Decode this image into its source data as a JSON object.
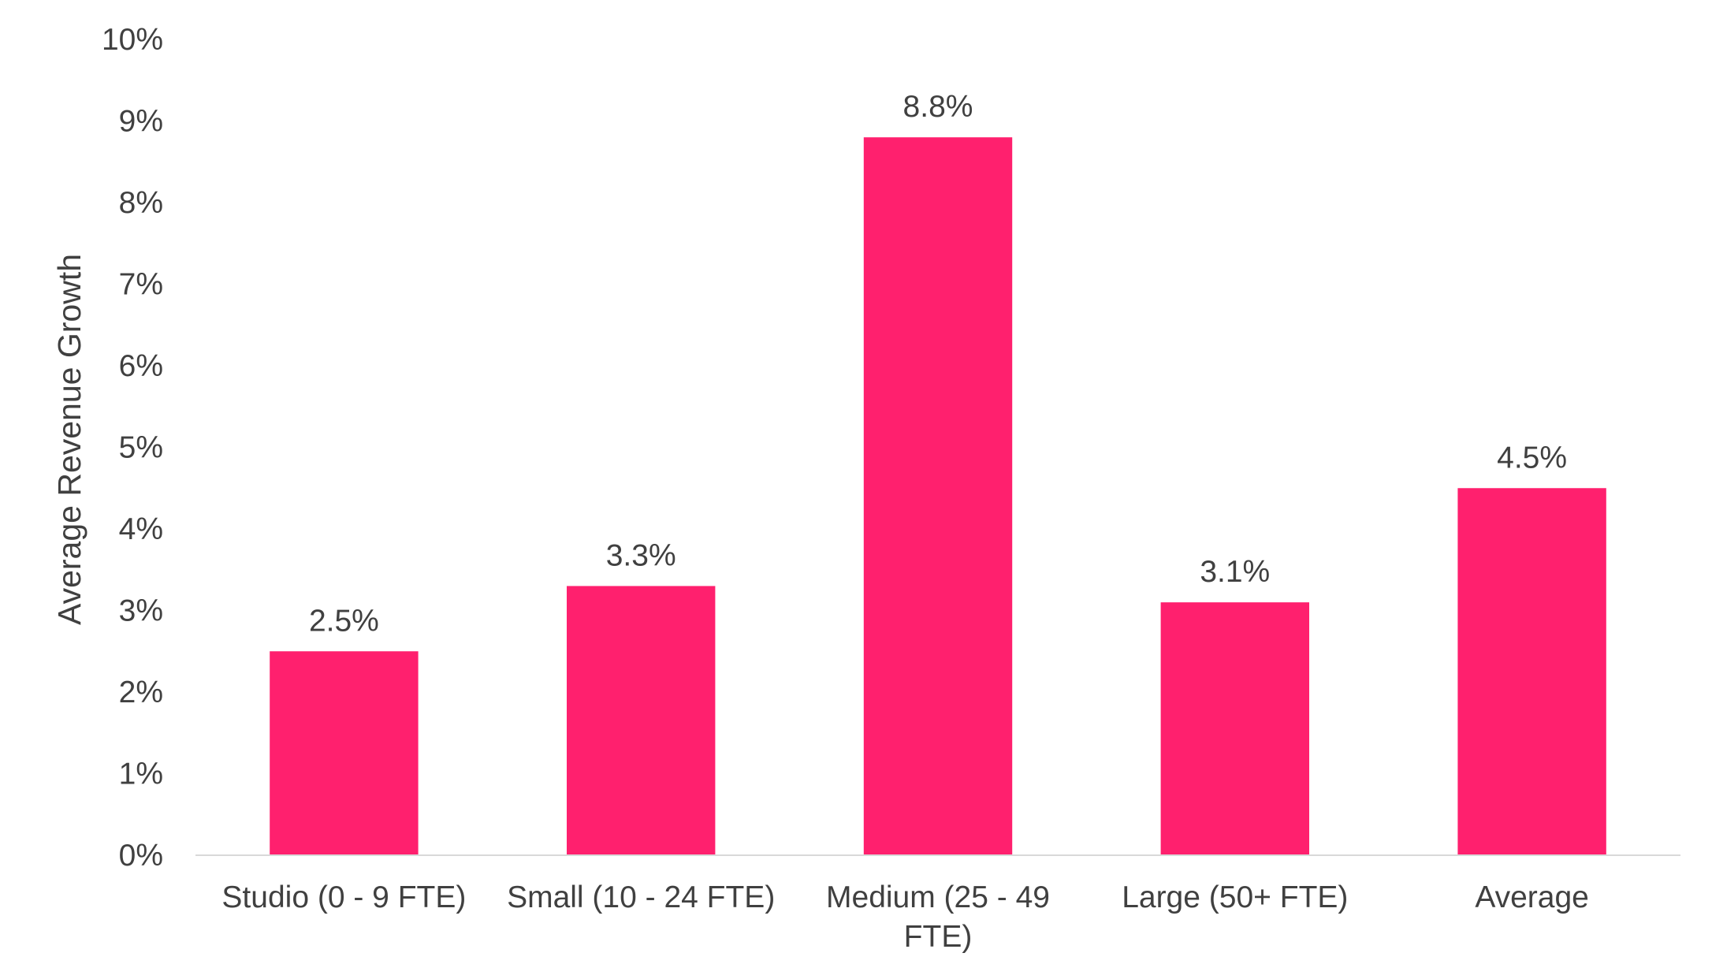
{
  "chart_data": {
    "type": "bar",
    "categories": [
      [
        "Studio (0 - 9 FTE)"
      ],
      [
        "Small (10 - 24 FTE)"
      ],
      [
        "Medium (25 - 49",
        "FTE)"
      ],
      [
        "Large (50+ FTE)"
      ],
      [
        "Average"
      ]
    ],
    "values": [
      2.5,
      3.3,
      8.8,
      3.1,
      4.5
    ],
    "data_labels": [
      "2.5%",
      "3.3%",
      "8.8%",
      "3.1%",
      "4.5%"
    ],
    "title": "",
    "xlabel": "",
    "ylabel": "Average Revenue Growth",
    "ylim": [
      0,
      10
    ],
    "yticks": [
      "0%",
      "1%",
      "2%",
      "3%",
      "4%",
      "5%",
      "6%",
      "7%",
      "8%",
      "9%",
      "10%"
    ],
    "grid": false,
    "legend": "none",
    "bar_color": "#FF206E",
    "axis_color": "#D9D9D9",
    "text_color": "#404040"
  }
}
